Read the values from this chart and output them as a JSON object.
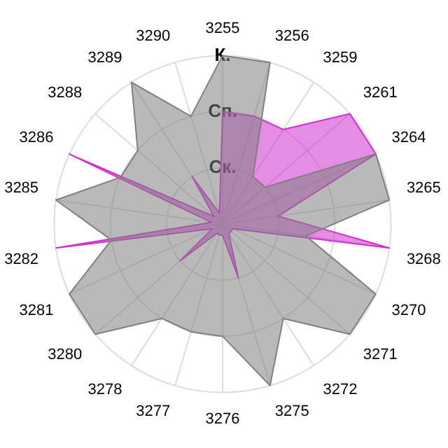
{
  "chart_data": {
    "type": "radar",
    "categories": [
      "3255",
      "3256",
      "3259",
      "3261",
      "3264",
      "3265",
      "3268",
      "3270",
      "3271",
      "3272",
      "3275",
      "3276",
      "3277",
      "3278",
      "3280",
      "3281",
      "3282",
      "3285",
      "3286",
      "3288",
      "3289",
      "3290"
    ],
    "ylim": [
      0,
      3
    ],
    "yticks": [
      {
        "value": 1,
        "label": "Ск."
      },
      {
        "value": 2,
        "label": "Сп."
      },
      {
        "value": 3,
        "label": "К."
      }
    ],
    "grid": true,
    "series": [
      {
        "color": "#808080",
        "values": [
          3,
          3,
          1,
          1,
          3,
          3,
          1.5,
          3,
          3,
          2,
          3,
          2,
          2,
          2,
          3,
          3,
          2,
          3,
          2,
          2,
          3,
          2
        ]
      },
      {
        "color": "#d030d0",
        "values": [
          2,
          2,
          2,
          3,
          3,
          1,
          3,
          0.2,
          0.2,
          0.2,
          1,
          0.2,
          0.2,
          0.2,
          1,
          0.2,
          3,
          0.2,
          3,
          0.2,
          1,
          0.2
        ]
      }
    ]
  }
}
